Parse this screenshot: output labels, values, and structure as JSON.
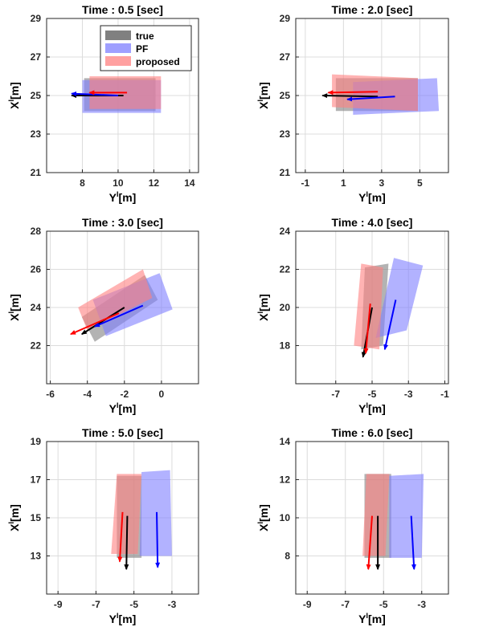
{
  "chart_data": [
    {
      "type": "scatter",
      "title": "Time : 0.5 [sec]",
      "xlabel": "Y",
      "xlabel_sup": "I",
      "xlabel_unit": "[m]",
      "ylabel": "X",
      "ylabel_sup": "I",
      "ylabel_unit": "[m]",
      "xlim": [
        6,
        14.5
      ],
      "ylim": [
        21,
        29
      ],
      "xticks": [
        8,
        10,
        12,
        14
      ],
      "yticks": [
        21,
        23,
        25,
        27,
        29
      ],
      "grid": true,
      "legend": {
        "position": "top-right",
        "entries": [
          "true",
          "PF",
          "proposed"
        ]
      },
      "series": [
        {
          "name": "true",
          "color": "#808080",
          "arrow_color": "#000000",
          "box": [
            [
              8.1,
              24.2
            ],
            [
              12.1,
              24.2
            ],
            [
              12.1,
              25.9
            ],
            [
              8.1,
              25.9
            ]
          ],
          "arrow": {
            "from": [
              10.3,
              25.0
            ],
            "to": [
              7.4,
              25.0
            ]
          }
        },
        {
          "name": "PF",
          "color": "#7f7fff",
          "arrow_color": "#0000ff",
          "box": [
            [
              8.0,
              24.1
            ],
            [
              12.4,
              24.1
            ],
            [
              12.4,
              25.8
            ],
            [
              8.0,
              25.8
            ]
          ],
          "arrow": {
            "from": [
              10.0,
              25.0
            ],
            "to": [
              7.4,
              25.1
            ]
          }
        },
        {
          "name": "proposed",
          "color": "#ff8080",
          "arrow_color": "#ff0000",
          "box": [
            [
              8.4,
              24.3
            ],
            [
              12.4,
              24.3
            ],
            [
              12.4,
              26.0
            ],
            [
              8.4,
              26.0
            ]
          ],
          "arrow": {
            "from": [
              10.5,
              25.15
            ],
            "to": [
              8.4,
              25.15
            ]
          }
        }
      ]
    },
    {
      "type": "scatter",
      "title": "Time : 2.0 [sec]",
      "xlabel": "Y",
      "xlabel_sup": "I",
      "xlabel_unit": "[m]",
      "ylabel": "X",
      "ylabel_sup": "I",
      "ylabel_unit": "[m]",
      "xlim": [
        -1.5,
        6.5
      ],
      "ylim": [
        21,
        29
      ],
      "xticks": [
        -1,
        1,
        3,
        5
      ],
      "yticks": [
        21,
        23,
        25,
        27,
        29
      ],
      "grid": true,
      "series": [
        {
          "name": "true",
          "color": "#808080",
          "arrow_color": "#000000",
          "box": [
            [
              0.6,
              24.2
            ],
            [
              4.9,
              24.2
            ],
            [
              4.9,
              25.9
            ],
            [
              0.6,
              25.9
            ]
          ],
          "arrow": {
            "from": [
              2.8,
              24.95
            ],
            "to": [
              -0.1,
              25.0
            ]
          }
        },
        {
          "name": "PF",
          "color": "#7f7fff",
          "arrow_color": "#0000ff",
          "box": [
            [
              1.5,
              24.0
            ],
            [
              6.0,
              24.2
            ],
            [
              5.9,
              25.9
            ],
            [
              1.5,
              25.7
            ]
          ],
          "arrow": {
            "from": [
              3.7,
              24.95
            ],
            "to": [
              1.2,
              24.8
            ]
          }
        },
        {
          "name": "proposed",
          "color": "#ff8080",
          "arrow_color": "#ff0000",
          "box": [
            [
              0.4,
              24.4
            ],
            [
              4.9,
              24.2
            ],
            [
              4.9,
              25.9
            ],
            [
              0.4,
              26.1
            ]
          ],
          "arrow": {
            "from": [
              2.8,
              25.2
            ],
            "to": [
              0.2,
              25.15
            ]
          }
        }
      ]
    },
    {
      "type": "scatter",
      "title": "Time : 3.0 [sec]",
      "xlabel": "Y",
      "xlabel_sup": "I",
      "xlabel_unit": "[m]",
      "ylabel": "X",
      "ylabel_sup": "I",
      "ylabel_unit": "[m]",
      "xlim": [
        -6.2,
        2.0
      ],
      "ylim": [
        20,
        28
      ],
      "xticks": [
        -6,
        -4,
        -2,
        0
      ],
      "yticks": [
        22,
        24,
        26,
        28
      ],
      "grid": true,
      "series": [
        {
          "name": "true",
          "color": "#808080",
          "arrow_color": "#000000",
          "box": [
            [
              -3.6,
              22.2
            ],
            [
              -0.2,
              24.4
            ],
            [
              -0.9,
              25.7
            ],
            [
              -4.3,
              23.5
            ]
          ],
          "arrow": {
            "from": [
              -2.0,
              24.0
            ],
            "to": [
              -4.3,
              22.6
            ]
          }
        },
        {
          "name": "PF",
          "color": "#7f7fff",
          "arrow_color": "#0000ff",
          "box": [
            [
              -3.0,
              22.5
            ],
            [
              0.6,
              23.9
            ],
            [
              -0.1,
              25.8
            ],
            [
              -3.7,
              24.4
            ]
          ],
          "arrow": {
            "from": [
              -1.0,
              24.1
            ],
            "to": [
              -3.6,
              23.0
            ]
          }
        },
        {
          "name": "proposed",
          "color": "#ff8080",
          "arrow_color": "#ff0000",
          "box": [
            [
              -4.0,
              22.8
            ],
            [
              -0.5,
              24.5
            ],
            [
              -1.0,
              26.0
            ],
            [
              -4.5,
              24.0
            ]
          ],
          "arrow": {
            "from": [
              -2.3,
              23.7
            ],
            "to": [
              -4.9,
              22.6
            ]
          }
        }
      ]
    },
    {
      "type": "scatter",
      "title": "Time : 4.0 [sec]",
      "xlabel": "Y",
      "xlabel_sup": "I",
      "xlabel_unit": "[m]",
      "ylabel": "X",
      "ylabel_sup": "I",
      "ylabel_unit": "[m]",
      "xlim": [
        -9.2,
        -0.8
      ],
      "ylim": [
        16,
        24
      ],
      "xticks": [
        -7,
        -5,
        -3,
        -1
      ],
      "yticks": [
        18,
        20,
        22,
        24
      ],
      "grid": true,
      "series": [
        {
          "name": "true",
          "color": "#808080",
          "arrow_color": "#000000",
          "box": [
            [
              -5.6,
              17.8
            ],
            [
              -4.4,
              18.0
            ],
            [
              -4.1,
              22.3
            ],
            [
              -5.4,
              22.1
            ]
          ],
          "arrow": {
            "from": [
              -5.0,
              20.0
            ],
            "to": [
              -5.5,
              17.4
            ]
          }
        },
        {
          "name": "PF",
          "color": "#7f7fff",
          "arrow_color": "#0000ff",
          "box": [
            [
              -4.8,
              18.4
            ],
            [
              -3.1,
              18.8
            ],
            [
              -2.2,
              22.2
            ],
            [
              -3.8,
              22.6
            ]
          ],
          "arrow": {
            "from": [
              -3.7,
              20.4
            ],
            "to": [
              -4.3,
              17.8
            ]
          }
        },
        {
          "name": "proposed",
          "color": "#ff8080",
          "arrow_color": "#ff0000",
          "box": [
            [
              -6.0,
              18.0
            ],
            [
              -4.6,
              17.8
            ],
            [
              -4.4,
              22.1
            ],
            [
              -5.6,
              22.3
            ]
          ],
          "arrow": {
            "from": [
              -5.1,
              20.2
            ],
            "to": [
              -5.35,
              17.6
            ]
          }
        }
      ]
    },
    {
      "type": "scatter",
      "title": "Time : 5.0 [sec]",
      "xlabel": "Y",
      "xlabel_sup": "I",
      "xlabel_unit": "[m]",
      "ylabel": "X",
      "ylabel_sup": "I",
      "ylabel_unit": "[m]",
      "xlim": [
        -9.6,
        -1.6
      ],
      "ylim": [
        11,
        19
      ],
      "xticks": [
        -9,
        -7,
        -5,
        -3
      ],
      "yticks": [
        13,
        15,
        17,
        19
      ],
      "grid": true,
      "series": [
        {
          "name": "true",
          "color": "#808080",
          "arrow_color": "#000000",
          "box": [
            [
              -5.9,
              12.9
            ],
            [
              -4.6,
              12.9
            ],
            [
              -4.6,
              17.2
            ],
            [
              -5.9,
              17.2
            ]
          ],
          "arrow": {
            "from": [
              -5.35,
              15.1
            ],
            "to": [
              -5.4,
              12.3
            ]
          }
        },
        {
          "name": "PF",
          "color": "#7f7fff",
          "arrow_color": "#0000ff",
          "box": [
            [
              -4.7,
              13.0
            ],
            [
              -3.0,
              13.0
            ],
            [
              -3.1,
              17.5
            ],
            [
              -4.6,
              17.4
            ]
          ],
          "arrow": {
            "from": [
              -3.8,
              15.3
            ],
            "to": [
              -3.75,
              12.4
            ]
          }
        },
        {
          "name": "proposed",
          "color": "#ff8080",
          "arrow_color": "#ff0000",
          "box": [
            [
              -6.2,
              13.1
            ],
            [
              -4.8,
              13.1
            ],
            [
              -4.6,
              17.3
            ],
            [
              -5.9,
              17.3
            ]
          ],
          "arrow": {
            "from": [
              -5.6,
              15.3
            ],
            "to": [
              -5.75,
              12.7
            ]
          }
        }
      ]
    },
    {
      "type": "scatter",
      "title": "Time : 6.0 [sec]",
      "xlabel": "Y",
      "xlabel_sup": "I",
      "xlabel_unit": "[m]",
      "ylabel": "X",
      "ylabel_sup": "I",
      "ylabel_unit": "[m]",
      "xlim": [
        -9.6,
        -1.6
      ],
      "ylim": [
        6,
        14
      ],
      "xticks": [
        -9,
        -7,
        -5,
        -3
      ],
      "yticks": [
        8,
        10,
        12,
        14
      ],
      "grid": true,
      "series": [
        {
          "name": "true",
          "color": "#808080",
          "arrow_color": "#000000",
          "box": [
            [
              -6.0,
              7.9
            ],
            [
              -4.6,
              7.9
            ],
            [
              -4.6,
              12.3
            ],
            [
              -6.0,
              12.3
            ]
          ],
          "arrow": {
            "from": [
              -5.3,
              10.1
            ],
            "to": [
              -5.3,
              7.3
            ]
          }
        },
        {
          "name": "PF",
          "color": "#7f7fff",
          "arrow_color": "#0000ff",
          "box": [
            [
              -4.7,
              7.9
            ],
            [
              -3.0,
              7.9
            ],
            [
              -2.9,
              12.3
            ],
            [
              -4.7,
              12.2
            ]
          ],
          "arrow": {
            "from": [
              -3.55,
              10.1
            ],
            "to": [
              -3.4,
              7.3
            ]
          }
        },
        {
          "name": "proposed",
          "color": "#ff8080",
          "arrow_color": "#ff0000",
          "box": [
            [
              -6.1,
              8.0
            ],
            [
              -4.9,
              8.0
            ],
            [
              -4.7,
              12.3
            ],
            [
              -5.9,
              12.3
            ]
          ],
          "arrow": {
            "from": [
              -5.6,
              10.1
            ],
            "to": [
              -5.8,
              7.3
            ]
          }
        }
      ]
    }
  ]
}
